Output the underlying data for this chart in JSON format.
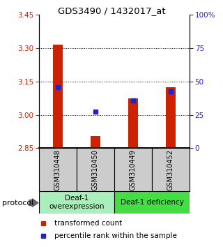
{
  "title": "GDS3490 / 1432017_at",
  "samples": [
    "GSM310448",
    "GSM310450",
    "GSM310449",
    "GSM310452"
  ],
  "red_values": [
    3.315,
    2.905,
    3.075,
    3.125
  ],
  "blue_values": [
    3.125,
    3.015,
    3.065,
    3.105
  ],
  "ylim_left": [
    2.85,
    3.45
  ],
  "yticks_left": [
    2.85,
    3.0,
    3.15,
    3.3,
    3.45
  ],
  "yticks_right": [
    0,
    25,
    50,
    75,
    100
  ],
  "red_color": "#cc2200",
  "blue_color": "#2222cc",
  "bar_bottom": 2.85,
  "groups": [
    {
      "label": "Deaf-1\noverexpression",
      "samples_idx": [
        0,
        1
      ],
      "color": "#aaeebb"
    },
    {
      "label": "Deaf-1 deficiency",
      "samples_idx": [
        2,
        3
      ],
      "color": "#44dd44"
    }
  ],
  "protocol_label": "protocol",
  "legend_red": "transformed count",
  "legend_blue": "percentile rank within the sample",
  "tick_color_left": "#cc2200",
  "tick_color_right": "#2222cc",
  "bar_width": 0.25,
  "marker_size": 5,
  "sample_label_color": "#cccccc",
  "grid_yticks": [
    3.0,
    3.15,
    3.3
  ]
}
